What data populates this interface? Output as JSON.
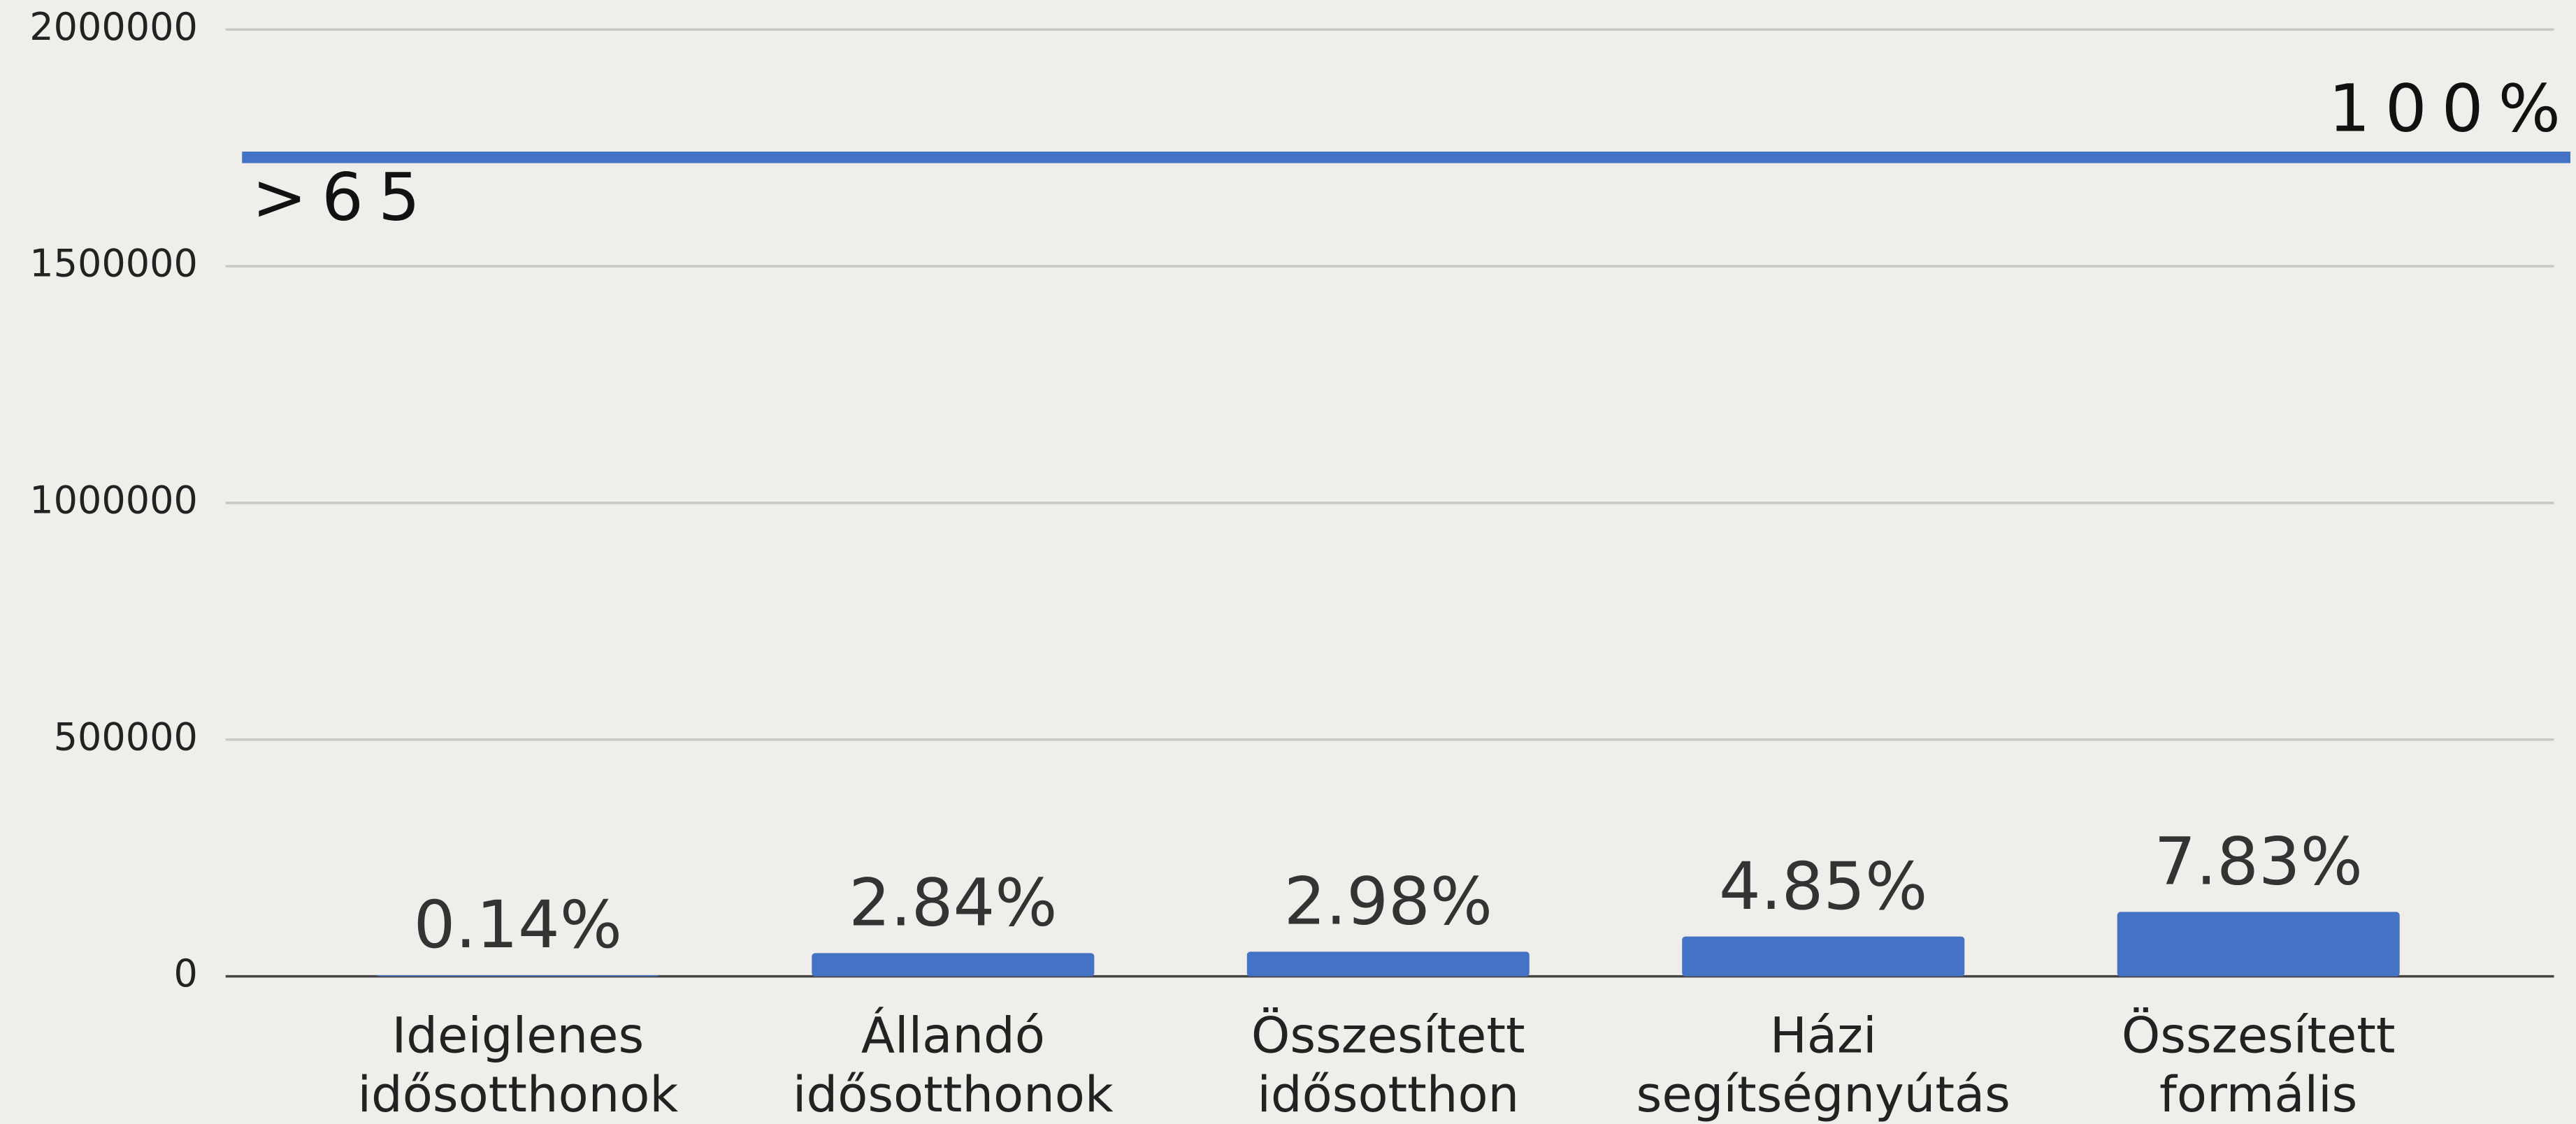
{
  "chart_data": {
    "type": "bar",
    "categories": [
      [
        "Ideiglenes",
        "idősotthonok"
      ],
      [
        "Állandó",
        "idősotthonok"
      ],
      [
        "Összesített",
        "idősotthon"
      ],
      [
        "Házi",
        "segítségnyútás"
      ],
      [
        "Összesített",
        "formális"
      ]
    ],
    "series": [
      {
        "name": null,
        "color": "#4472c4",
        "values": [
          2400,
          49000,
          52000,
          84000,
          136000
        ]
      }
    ],
    "percent_labels": [
      "0.14%",
      "2.84%",
      "2.98%",
      "4.85%",
      "7.83%"
    ],
    "reference_line": {
      "value": 1730000,
      "label": "100%",
      "group_label": ">65",
      "color": "#4472c4"
    },
    "ylim": [
      0,
      2000000
    ],
    "yticks": [
      0,
      500000,
      1000000,
      1500000,
      2000000
    ],
    "grid": true
  }
}
